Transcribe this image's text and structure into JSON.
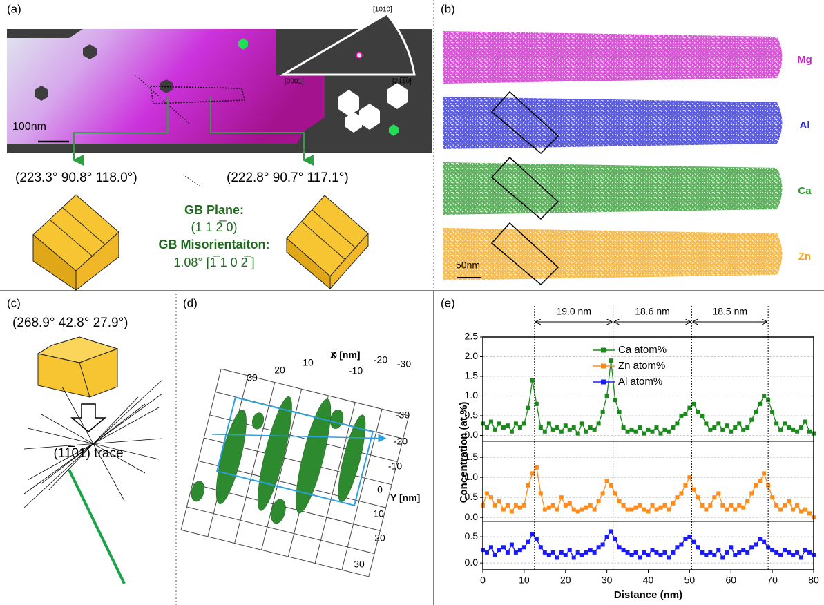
{
  "panel_a": {
    "label": "(a)",
    "ipf_top": "[101̅0]",
    "ipf_left": "[0001]",
    "ipf_right": "[21̅1̅0]",
    "scale": "100nm",
    "euler_left": "(223.3° 90.8° 118.0°)",
    "euler_right": "(222.8° 90.7° 117.1°)",
    "gb_plane_title": "GB Plane:",
    "gb_plane": "(1 1 2̅ 0)",
    "gb_mis_title": "GB Misorientaiton:",
    "gb_mis": "1.08° [1̅ 1 0 2̅ ]"
  },
  "panel_b": {
    "label": "(b)",
    "elements": [
      "Mg",
      "Al",
      "Ca",
      "Zn"
    ],
    "scale": "50nm"
  },
  "panel_c": {
    "label": "(c)",
    "euler": "(268.9° 42.8° 27.9°)",
    "trace": "(11̅01) trace"
  },
  "panel_d": {
    "label": "(d)",
    "x_title": "X [nm]",
    "y_title": "Y [nm]",
    "x_tick_labels": [
      30,
      20,
      10,
      0,
      -10,
      -20,
      -30
    ],
    "y_tick_labels": [
      -30,
      -20,
      -10,
      0,
      10,
      20,
      30
    ]
  },
  "panel_e": {
    "label": "(e)"
  },
  "chart_data": [
    {
      "type": "line",
      "x": [
        0,
        1,
        2,
        3,
        4,
        5,
        6,
        7,
        8,
        9,
        10,
        11,
        12,
        13,
        14,
        15,
        16,
        17,
        18,
        19,
        20,
        21,
        22,
        23,
        24,
        25,
        26,
        27,
        28,
        29,
        30,
        31,
        32,
        33,
        34,
        35,
        36,
        37,
        38,
        39,
        40,
        41,
        42,
        43,
        44,
        45,
        46,
        47,
        48,
        49,
        50,
        51,
        52,
        53,
        54,
        55,
        56,
        57,
        58,
        59,
        60,
        61,
        62,
        63,
        64,
        65,
        66,
        67,
        68,
        69,
        70,
        71,
        72,
        73,
        74,
        75,
        76,
        77,
        78,
        79,
        80
      ],
      "series": [
        {
          "name": "Ca atom%",
          "color": "#1a8a1a",
          "values": [
            0.3,
            0.2,
            0.35,
            0.15,
            0.3,
            0.2,
            0.25,
            0.1,
            0.3,
            0.2,
            0.3,
            0.7,
            1.4,
            0.8,
            0.2,
            0.1,
            0.3,
            0.15,
            0.2,
            0.1,
            0.25,
            0.15,
            0.2,
            0.05,
            0.3,
            0.1,
            0.2,
            0.15,
            0.3,
            0.6,
            1.0,
            1.9,
            0.9,
            0.6,
            0.2,
            0.1,
            0.15,
            0.1,
            0.2,
            0.05,
            0.15,
            0.1,
            0.2,
            0.05,
            0.15,
            0.1,
            0.2,
            0.3,
            0.5,
            0.55,
            0.7,
            0.8,
            0.6,
            0.5,
            0.3,
            0.15,
            0.2,
            0.3,
            0.15,
            0.25,
            0.1,
            0.2,
            0.3,
            0.15,
            0.2,
            0.4,
            0.6,
            0.8,
            1.0,
            0.9,
            0.6,
            0.3,
            0.15,
            0.3,
            0.2,
            0.15,
            0.1,
            0.2,
            0.35,
            0.1,
            0.05
          ]
        }
      ],
      "xlim": [
        0,
        80
      ],
      "ylim": [
        -0.15,
        2.5
      ],
      "yticks": [
        0.0,
        0.5,
        1.0,
        1.5,
        2.0,
        2.5
      ],
      "yticks_fmt": [
        {
          "value": 0,
          "label": "0.0"
        },
        0.5,
        {
          "value": 1,
          "label": "1.0"
        },
        1.5,
        {
          "value": 2,
          "label": "2.0"
        },
        2.5
      ],
      "grid": true,
      "peak_x": [
        12.5,
        31.5,
        50.5,
        69
      ],
      "spacing_labels": [
        "19.0 nm",
        "18.6 nm",
        "18.5 nm"
      ]
    },
    {
      "type": "line",
      "x": [
        0,
        1,
        2,
        3,
        4,
        5,
        6,
        7,
        8,
        9,
        10,
        11,
        12,
        13,
        14,
        15,
        16,
        17,
        18,
        19,
        20,
        21,
        22,
        23,
        24,
        25,
        26,
        27,
        28,
        29,
        30,
        31,
        32,
        33,
        34,
        35,
        36,
        37,
        38,
        39,
        40,
        41,
        42,
        43,
        44,
        45,
        46,
        47,
        48,
        49,
        50,
        51,
        52,
        53,
        54,
        55,
        56,
        57,
        58,
        59,
        60,
        61,
        62,
        63,
        64,
        65,
        66,
        67,
        68,
        69,
        70,
        71,
        72,
        73,
        74,
        75,
        76,
        77,
        78,
        79,
        80
      ],
      "series": [
        {
          "name": "Zn atom%",
          "color": "#ff8c1a",
          "values": [
            0.3,
            0.6,
            0.5,
            0.3,
            0.4,
            0.2,
            0.3,
            0.15,
            0.3,
            0.25,
            0.3,
            0.8,
            1.1,
            1.25,
            0.6,
            0.2,
            0.25,
            0.3,
            0.2,
            0.5,
            0.3,
            0.35,
            0.2,
            0.15,
            0.2,
            0.25,
            0.3,
            0.2,
            0.4,
            0.6,
            0.9,
            0.8,
            0.6,
            0.4,
            0.3,
            0.2,
            0.2,
            0.25,
            0.3,
            0.2,
            0.15,
            0.3,
            0.2,
            0.25,
            0.3,
            0.2,
            0.35,
            0.5,
            0.6,
            0.8,
            1.0,
            0.7,
            0.5,
            0.3,
            0.2,
            0.3,
            0.5,
            0.6,
            0.3,
            0.2,
            0.3,
            0.2,
            0.3,
            0.25,
            0.4,
            0.6,
            0.8,
            0.9,
            1.1,
            0.8,
            0.5,
            0.3,
            0.2,
            0.3,
            0.4,
            0.2,
            0.3,
            0.15,
            0.2,
            0.1,
            0.0
          ]
        }
      ],
      "xlim": [
        0,
        80
      ],
      "ylim": [
        -0.1,
        1.9
      ],
      "yticks_fmt": [
        {
          "value": 0,
          "label": "0.0"
        },
        0.5,
        {
          "value": 1,
          "label": "1.0"
        },
        1.5
      ],
      "grid": true,
      "y_label": "Concentration (at.%)"
    },
    {
      "type": "line",
      "x": [
        0,
        1,
        2,
        3,
        4,
        5,
        6,
        7,
        8,
        9,
        10,
        11,
        12,
        13,
        14,
        15,
        16,
        17,
        18,
        19,
        20,
        21,
        22,
        23,
        24,
        25,
        26,
        27,
        28,
        29,
        30,
        31,
        32,
        33,
        34,
        35,
        36,
        37,
        38,
        39,
        40,
        41,
        42,
        43,
        44,
        45,
        46,
        47,
        48,
        49,
        50,
        51,
        52,
        53,
        54,
        55,
        56,
        57,
        58,
        59,
        60,
        61,
        62,
        63,
        64,
        65,
        66,
        67,
        68,
        69,
        70,
        71,
        72,
        73,
        74,
        75,
        76,
        77,
        78,
        79,
        80
      ],
      "series": [
        {
          "name": "Al atom%",
          "color": "#1a1aff",
          "values": [
            0.25,
            0.2,
            0.3,
            0.15,
            0.25,
            0.3,
            0.2,
            0.35,
            0.2,
            0.25,
            0.3,
            0.4,
            0.55,
            0.45,
            0.3,
            0.2,
            0.15,
            0.2,
            0.1,
            0.2,
            0.15,
            0.25,
            0.1,
            0.2,
            0.15,
            0.2,
            0.25,
            0.2,
            0.3,
            0.35,
            0.5,
            0.6,
            0.45,
            0.3,
            0.25,
            0.2,
            0.15,
            0.2,
            0.1,
            0.2,
            0.15,
            0.25,
            0.2,
            0.15,
            0.2,
            0.1,
            0.2,
            0.3,
            0.35,
            0.45,
            0.5,
            0.4,
            0.3,
            0.2,
            0.15,
            0.2,
            0.15,
            0.25,
            0.1,
            0.2,
            0.3,
            0.15,
            0.2,
            0.25,
            0.2,
            0.3,
            0.35,
            0.45,
            0.4,
            0.3,
            0.25,
            0.2,
            0.15,
            0.25,
            0.2,
            0.15,
            0.2,
            0.1,
            0.25,
            0.2,
            0.15
          ]
        }
      ],
      "xlim": [
        0,
        80
      ],
      "ylim": [
        -0.13,
        0.79
      ],
      "yticks_fmt": [
        {
          "value": 0,
          "label": "0.0"
        },
        0.5
      ],
      "grid": true,
      "xticks": [
        0,
        10,
        20,
        30,
        40,
        50,
        60,
        70,
        80
      ],
      "x_label": "Distance (nm)"
    }
  ]
}
